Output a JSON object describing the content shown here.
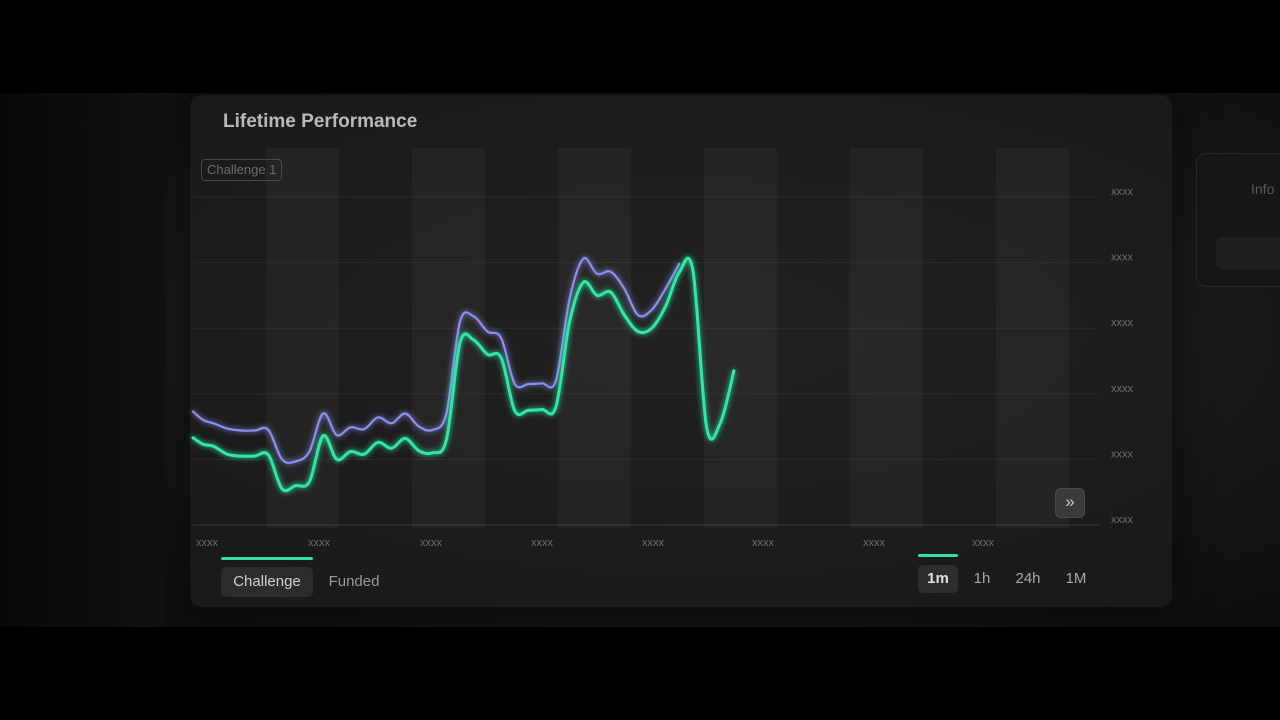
{
  "header": {
    "title": "Lifetime Performance"
  },
  "side_panel": {
    "label": "Info"
  },
  "tag": {
    "label": "Challenge 1"
  },
  "tabs": [
    {
      "label": "Challenge",
      "active": true
    },
    {
      "label": "Funded",
      "active": false
    }
  ],
  "timeframes": [
    {
      "label": "1m",
      "active": true
    },
    {
      "label": "1h",
      "active": false
    },
    {
      "label": "24h",
      "active": false
    },
    {
      "label": "1M",
      "active": false
    }
  ],
  "expand_button": {
    "label": "»",
    "icon": "double-chevron-right-icon"
  },
  "colors": {
    "series_green": "#2fe8a4",
    "series_purple": "#8b8ff0",
    "accent": "#2fe0a0"
  },
  "chart_data": {
    "type": "line",
    "title": "Lifetime Performance",
    "xlabel": "",
    "ylabel": "",
    "x_tick_labels": [
      "xxxx",
      "xxxx",
      "xxxx",
      "xxxx",
      "xxxx",
      "xxxx",
      "xxxx",
      "xxxx"
    ],
    "y_tick_labels": [
      "xxxx",
      "xxxx",
      "xxxx",
      "xxxx",
      "xxxx",
      "xxxx"
    ],
    "ylim": [
      0,
      5
    ],
    "grid": true,
    "legend": "none",
    "series": [
      {
        "color": "#8b8ff0",
        "x": [
          0,
          3,
          6,
          10,
          14,
          18,
          22,
          26,
          30,
          34,
          38,
          42,
          46,
          50,
          54,
          58,
          62,
          66,
          70,
          74,
          78,
          82,
          86,
          90,
          94,
          98,
          102,
          106,
          110,
          114,
          118,
          122,
          126,
          130,
          134,
          138,
          142,
          146,
          150,
          154,
          158,
          162,
          166,
          170,
          174,
          178,
          182,
          186,
          190,
          194,
          198,
          202,
          206,
          210,
          214,
          218,
          222,
          226,
          230,
          234,
          238,
          242,
          246,
          250,
          254,
          258,
          262
        ],
        "values": [
          1.73,
          1.6,
          1.55,
          1.47,
          1.44,
          1.44,
          1.45,
          1.0,
          0.97,
          1.12,
          1.7,
          1.37,
          1.49,
          1.46,
          1.64,
          1.55,
          1.7,
          1.5,
          1.45,
          1.7,
          3.1,
          3.18,
          2.95,
          2.85,
          2.15,
          2.15,
          2.16,
          2.2,
          3.45,
          4.06,
          3.83,
          3.86,
          3.6,
          3.2,
          3.28,
          3.6,
          3.98,
          null,
          null,
          null,
          null,
          null,
          null,
          null,
          null,
          null,
          null,
          null,
          null,
          null,
          null,
          null,
          null,
          null,
          null,
          null,
          null,
          null,
          null,
          null,
          null,
          null,
          null,
          null,
          null,
          null,
          null
        ]
      },
      {
        "color": "#2fe8a4",
        "x": [
          0,
          3,
          6,
          10,
          14,
          18,
          22,
          26,
          30,
          34,
          38,
          42,
          46,
          50,
          54,
          58,
          62,
          66,
          70,
          74,
          78,
          82,
          86,
          90,
          94,
          98,
          102,
          106,
          110,
          114,
          118,
          122,
          126,
          130,
          134,
          138,
          142,
          146,
          150,
          154,
          158,
          162,
          166,
          170,
          174,
          178,
          182,
          186,
          190,
          194,
          198,
          202,
          206,
          210,
          214,
          218,
          222,
          226,
          230,
          234,
          238,
          242,
          246,
          250,
          254,
          258,
          262
        ],
        "values": [
          1.33,
          1.23,
          1.2,
          1.08,
          1.05,
          1.05,
          1.07,
          0.55,
          0.6,
          0.66,
          1.36,
          1.0,
          1.12,
          1.08,
          1.26,
          1.17,
          1.32,
          1.13,
          1.1,
          1.3,
          2.78,
          2.82,
          2.6,
          2.55,
          1.74,
          1.75,
          1.76,
          1.8,
          3.1,
          3.7,
          3.5,
          3.55,
          3.2,
          2.95,
          3.0,
          3.33,
          3.85,
          3.88,
          1.5,
          1.55,
          2.35,
          null,
          null,
          null,
          null,
          null,
          null,
          null,
          null,
          null,
          null,
          null,
          null,
          null,
          null,
          null,
          null,
          null,
          null,
          null,
          null,
          null,
          null,
          null,
          null,
          null,
          null
        ]
      }
    ]
  }
}
